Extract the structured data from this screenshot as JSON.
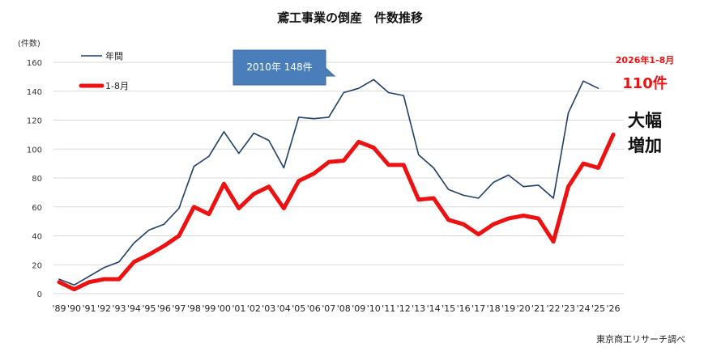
{
  "chart_data": {
    "type": "line",
    "title": "鳶工事業の倒産　件数推移",
    "ylabel": "(件数)",
    "ylim": [
      0,
      160
    ],
    "yticks": [
      0,
      20,
      40,
      60,
      80,
      100,
      120,
      140,
      160
    ],
    "grid": true,
    "legend_position": "top-left",
    "categories": [
      "'89",
      "'90",
      "'91",
      "'92",
      "'93",
      "'94",
      "'95",
      "'96",
      "'97",
      "'98",
      "'99",
      "'00",
      "'01",
      "'02",
      "'03",
      "'04",
      "'05",
      "'06",
      "'07",
      "'08",
      "'09",
      "'10",
      "'11",
      "'12",
      "'13",
      "'14",
      "'15",
      "'16",
      "'17",
      "'18",
      "'19",
      "'20",
      "'21",
      "'22",
      "'23",
      "'24",
      "'25",
      "'26"
    ],
    "series": [
      {
        "name": "年間",
        "color": "#1f3f66",
        "values": [
          10,
          6,
          12,
          18,
          22,
          35,
          44,
          48,
          59,
          88,
          95,
          112,
          97,
          111,
          106,
          87,
          122,
          121,
          122,
          139,
          142,
          148,
          139,
          137,
          96,
          87,
          72,
          68,
          66,
          77,
          82,
          74,
          75,
          66,
          125,
          147,
          142,
          null
        ]
      },
      {
        "name": "1-8月",
        "color": "#ee1111",
        "values": [
          8,
          3,
          8,
          10,
          10,
          22,
          27,
          33,
          40,
          60,
          55,
          76,
          59,
          69,
          74,
          59,
          78,
          83,
          91,
          92,
          105,
          101,
          89,
          89,
          65,
          66,
          51,
          48,
          41,
          48,
          52,
          54,
          52,
          36,
          74,
          90,
          87,
          110
        ]
      }
    ],
    "annotations": {
      "callout": "2010年 148件",
      "period_label": "2026年1-8月",
      "period_value": "110件",
      "comment_line1": "大幅",
      "comment_line2": "増加"
    },
    "source": "東京商工リサーチ調べ"
  }
}
